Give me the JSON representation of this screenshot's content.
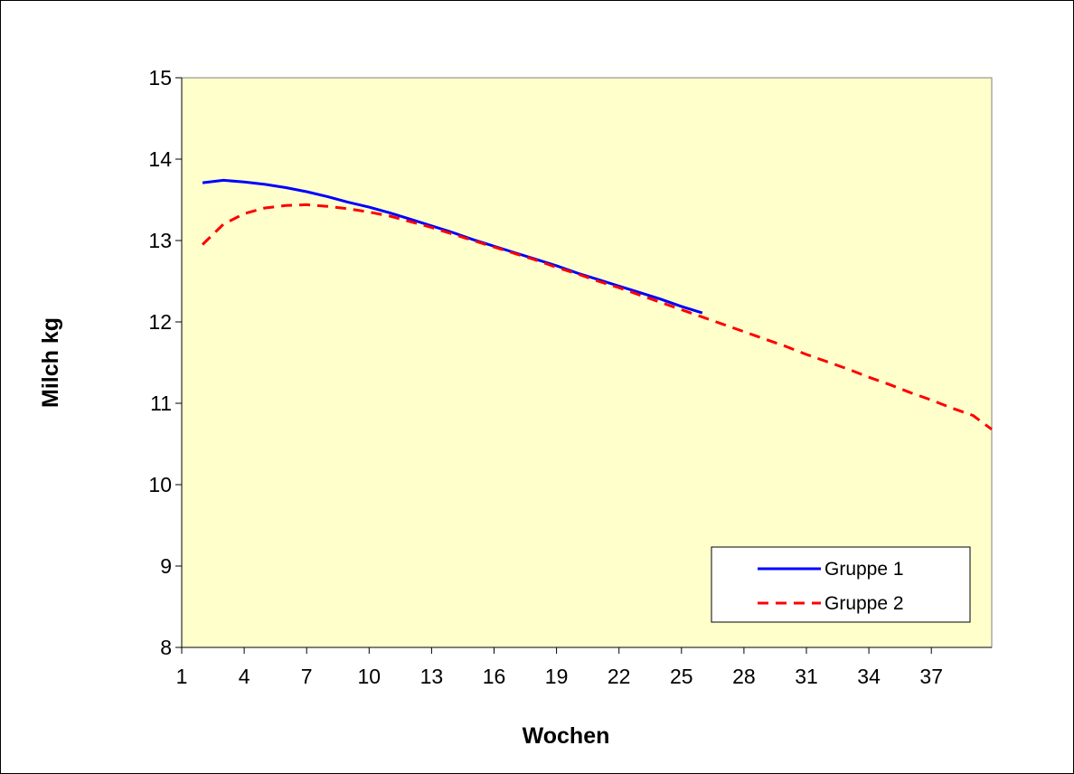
{
  "chart_data": {
    "type": "line",
    "xlabel": "Wochen",
    "ylabel": "Milch kg",
    "xlim": [
      1,
      39.9
    ],
    "ylim": [
      8,
      15
    ],
    "x_ticks": [
      1,
      4,
      7,
      10,
      13,
      16,
      19,
      22,
      25,
      28,
      31,
      34,
      37
    ],
    "y_ticks": [
      8,
      9,
      10,
      11,
      12,
      13,
      14,
      15
    ],
    "grid": false,
    "plot_background": "#ffffcc",
    "legend_position": "bottom-right",
    "series": [
      {
        "name": "Gruppe 1",
        "color": "#0000ff",
        "dash": "solid",
        "x": [
          2,
          3,
          4,
          5,
          6,
          7,
          8,
          9,
          10,
          11,
          12,
          13,
          14,
          15,
          16,
          17,
          18,
          19,
          20,
          21,
          22,
          23,
          24,
          25,
          26
        ],
        "values": [
          13.71,
          13.74,
          13.72,
          13.69,
          13.65,
          13.6,
          13.54,
          13.47,
          13.41,
          13.34,
          13.26,
          13.18,
          13.1,
          13.01,
          12.93,
          12.85,
          12.77,
          12.69,
          12.6,
          12.52,
          12.44,
          12.36,
          12.28,
          12.19,
          12.11
        ]
      },
      {
        "name": "Gruppe 2",
        "color": "#ff0000",
        "dash": "dashed",
        "x": [
          2,
          3,
          4,
          5,
          6,
          7,
          8,
          9,
          10,
          11,
          12,
          13,
          14,
          15,
          16,
          17,
          18,
          19,
          20,
          21,
          22,
          23,
          24,
          25,
          26,
          27,
          28,
          29,
          30,
          31,
          32,
          33,
          34,
          35,
          36,
          37,
          38,
          39,
          39.9
        ],
        "values": [
          12.95,
          13.2,
          13.33,
          13.4,
          13.43,
          13.44,
          13.42,
          13.39,
          13.35,
          13.3,
          13.23,
          13.16,
          13.08,
          13.0,
          12.92,
          12.84,
          12.76,
          12.67,
          12.59,
          12.5,
          12.42,
          12.33,
          12.24,
          12.15,
          12.06,
          11.97,
          11.88,
          11.79,
          11.7,
          11.6,
          11.51,
          11.42,
          11.32,
          11.23,
          11.13,
          11.04,
          10.94,
          10.85,
          10.68
        ]
      }
    ]
  }
}
